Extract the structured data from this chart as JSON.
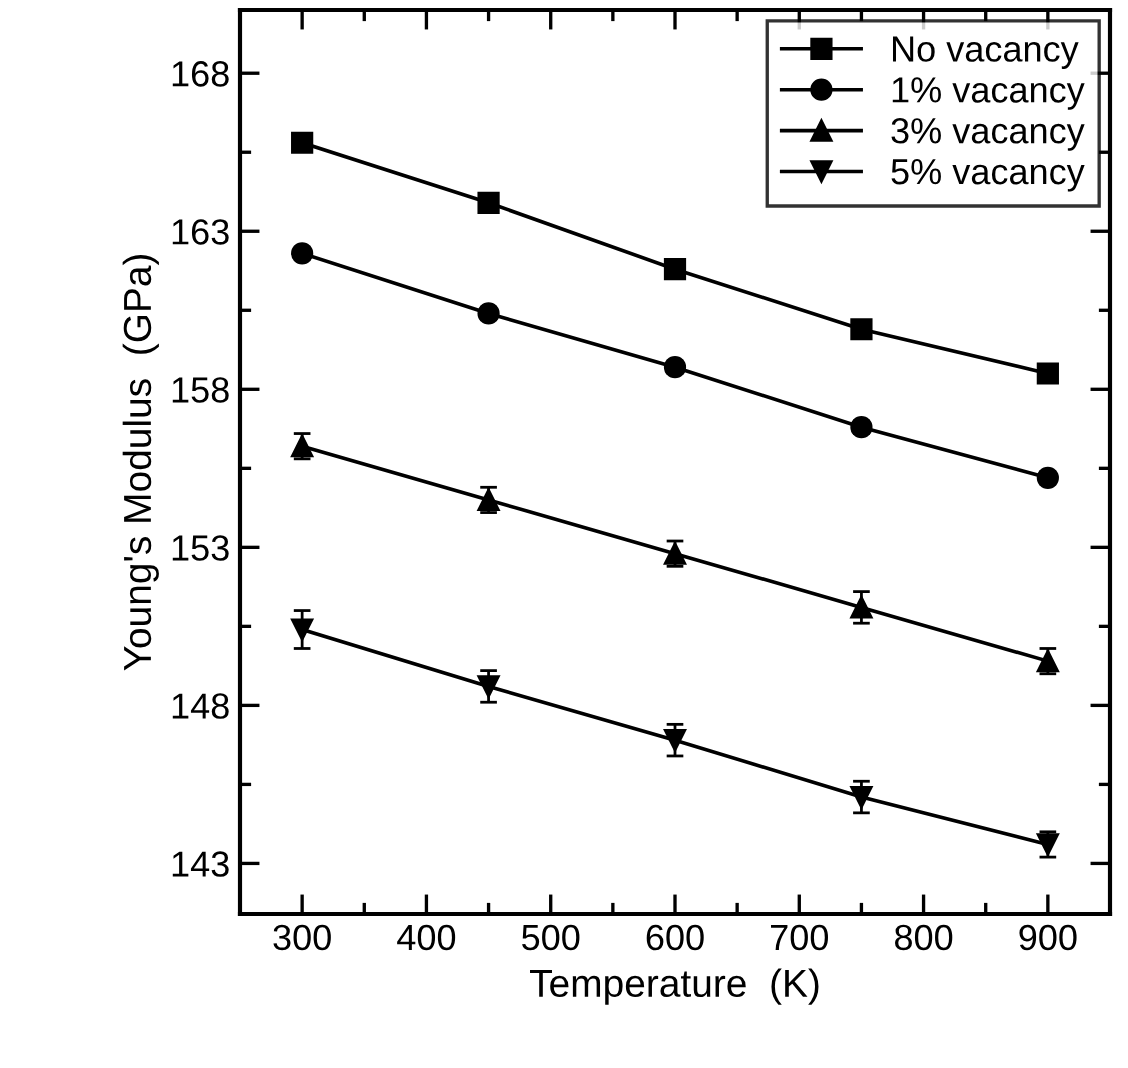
{
  "chart_data": {
    "type": "line",
    "xlabel": "Temperature  (K)",
    "ylabel": "Young's Modulus  (GPa)",
    "x": [
      300,
      450,
      600,
      750,
      900
    ],
    "xlim": [
      250,
      950
    ],
    "ylim": [
      141.4,
      170
    ],
    "xticks": [
      300,
      {
        "value": 350,
        "label": null
      },
      400,
      {
        "value": 450,
        "label": null
      },
      500,
      {
        "value": 550,
        "label": null
      },
      600,
      {
        "value": 650,
        "label": null
      },
      700,
      {
        "value": 750,
        "label": null
      },
      800,
      {
        "value": 850,
        "label": null
      },
      900
    ],
    "yticks": [
      143,
      {
        "value": 145.5,
        "label": null
      },
      148,
      {
        "value": 150.5,
        "label": null
      },
      153,
      {
        "value": 155.5,
        "label": null
      },
      158,
      {
        "value": 160.5,
        "label": null
      },
      163,
      {
        "value": 165.5,
        "label": null
      },
      168
    ],
    "legend": "top right",
    "grid": false,
    "line_style": "solid",
    "series": [
      {
        "name": "No vacancy",
        "color": "#000000",
        "marker": "square",
        "values": [
          165.8,
          163.9,
          161.8,
          159.9,
          158.5
        ],
        "errors": [
          0.15,
          0.15,
          0.15,
          0.15,
          0.15
        ]
      },
      {
        "name": "1% vacancy",
        "color": "#000000",
        "marker": "circle",
        "values": [
          162.3,
          160.4,
          158.7,
          156.8,
          155.2
        ],
        "errors": [
          0.2,
          0.2,
          0.2,
          0.2,
          0.2
        ]
      },
      {
        "name": "3% vacancy",
        "color": "#000000",
        "marker": "triangle",
        "values": [
          156.2,
          154.5,
          152.8,
          151.1,
          149.4
        ],
        "errors": [
          0.4,
          0.4,
          0.4,
          0.5,
          0.4
        ]
      },
      {
        "name": "5% vacancy",
        "color": "#000000",
        "marker": "triangle_down",
        "values": [
          150.4,
          148.6,
          146.9,
          145.1,
          143.6
        ],
        "errors": [
          0.6,
          0.5,
          0.5,
          0.5,
          0.4
        ]
      }
    ]
  }
}
